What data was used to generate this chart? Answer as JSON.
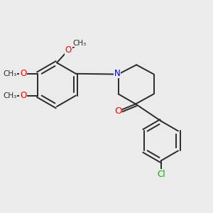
{
  "background_color": "#ebebeb",
  "bond_color": "#2a2a2a",
  "bond_width": 1.4,
  "atom_colors": {
    "O": "#ff0000",
    "N": "#0000cc",
    "Cl": "#00aa00",
    "C": "#2a2a2a"
  },
  "font_size": 8.5,
  "figsize": [
    3.0,
    3.0
  ],
  "dpi": 100,
  "xlim": [
    0,
    10
  ],
  "ylim": [
    0,
    10
  ]
}
